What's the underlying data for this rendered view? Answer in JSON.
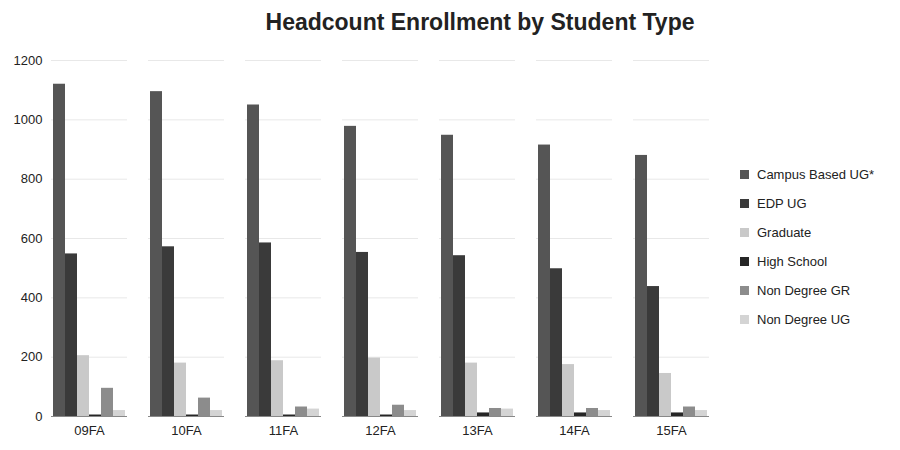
{
  "chart_data": {
    "type": "bar",
    "title": "Headcount Enrollment by Student Type",
    "categories": [
      "09FA",
      "10FA",
      "11FA",
      "12FA",
      "13FA",
      "14FA",
      "15FA"
    ],
    "series": [
      {
        "name": "Campus Based UG*",
        "color": "#555555",
        "values": [
          1120,
          1095,
          1050,
          978,
          948,
          915,
          880
        ]
      },
      {
        "name": "EDP UG",
        "color": "#3a3a3a",
        "values": [
          548,
          572,
          585,
          553,
          542,
          498,
          438
        ]
      },
      {
        "name": "Graduate",
        "color": "#c9c9c9",
        "values": [
          205,
          180,
          188,
          197,
          180,
          175,
          145
        ]
      },
      {
        "name": "High School",
        "color": "#262626",
        "values": [
          5,
          5,
          5,
          5,
          12,
          12,
          12
        ]
      },
      {
        "name": "Non Degree GR",
        "color": "#8c8c8c",
        "values": [
          95,
          62,
          32,
          38,
          27,
          27,
          32
        ]
      },
      {
        "name": "Non Degree UG",
        "color": "#d4d4d4",
        "values": [
          20,
          20,
          25,
          20,
          25,
          20,
          20
        ]
      }
    ],
    "ylim": [
      0,
      1200
    ],
    "yticks": [
      0,
      200,
      400,
      600,
      800,
      1000,
      1200
    ],
    "grid": true,
    "legend": "right"
  }
}
